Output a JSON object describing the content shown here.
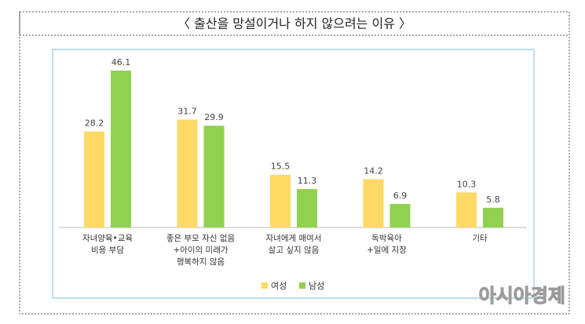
{
  "chart_data": {
    "type": "bar",
    "title": "〈  출산을 망설이거나 하지 않으려는 이유  〉",
    "categories": [
      "자녀양육•교육\n비용 부담",
      "좋은 부모 자신 없음\n+아이의 미래가\n행복하지 않음",
      "자녀에게 매여서\n살고 싶지 않음",
      "독박육아\n+일에 지장",
      "기타"
    ],
    "series": [
      {
        "name": "여성",
        "color": "#ffd966",
        "values": [
          28.2,
          31.7,
          15.5,
          14.2,
          10.3
        ]
      },
      {
        "name": "남성",
        "color": "#92d050",
        "values": [
          46.1,
          29.9,
          11.3,
          6.9,
          5.8
        ]
      }
    ],
    "legend": "bottom",
    "watermark": "아시아경제"
  }
}
